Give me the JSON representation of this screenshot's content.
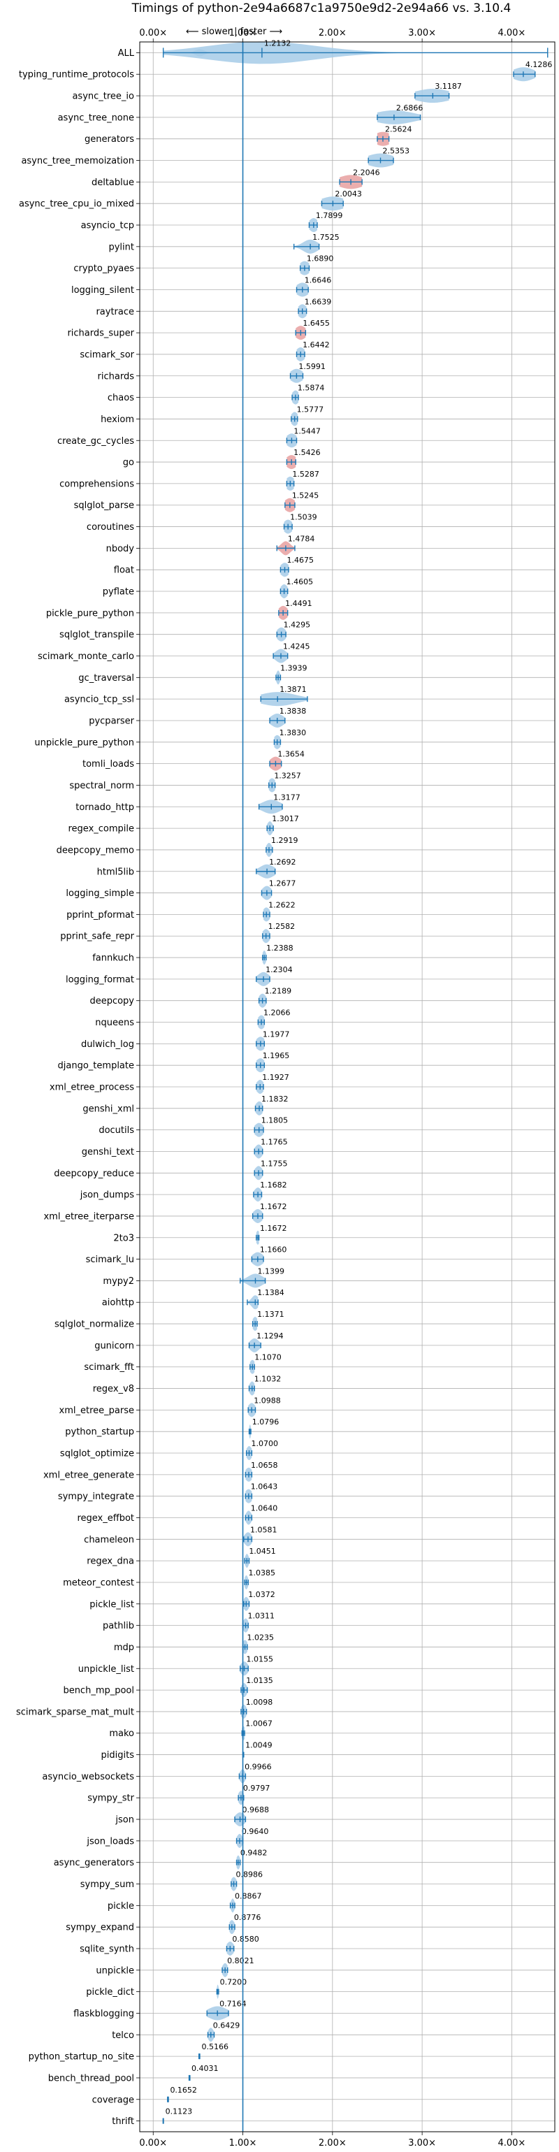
{
  "chart_data": {
    "type": "violin",
    "title": "Timings of python-2e94a6687c1a9750e9d2-2e94a66 vs. 3.10.4",
    "direction_label": "⟵ slower | faster ⟶",
    "x_ticks": [
      "0.00×",
      "1.00×",
      "2.00×",
      "3.00×",
      "4.00×"
    ],
    "x_tick_values": [
      0,
      1,
      2,
      3,
      4
    ],
    "xlim": [
      -0.15,
      4.48
    ],
    "reference_line": 1.0,
    "grid": true,
    "colors": {
      "violin": "#a6cbe8",
      "line": "#1f77b4",
      "slower": "#e8a0a0",
      "spine": "#000000"
    },
    "benchmarks": [
      {
        "name": "ALL",
        "value": "1.2132",
        "center": 1.2132,
        "lo": 0.1123,
        "hi": 4.4,
        "sp": 0.6
      },
      {
        "name": "typing_runtime_protocols",
        "value": "4.1286",
        "center": 4.1286,
        "lo": 4.02,
        "hi": 4.26,
        "sp": 0.12
      },
      {
        "name": "async_tree_io",
        "value": "3.1187",
        "center": 3.1187,
        "lo": 2.92,
        "hi": 3.3,
        "sp": 0.2
      },
      {
        "name": "async_tree_none",
        "value": "2.6866",
        "center": 2.6866,
        "lo": 2.5,
        "hi": 2.98,
        "sp": 0.22
      },
      {
        "name": "generators",
        "value": "2.5624",
        "center": 2.5624,
        "lo": 2.5,
        "hi": 2.63,
        "sp": 0.1,
        "slower": true
      },
      {
        "name": "async_tree_memoization",
        "value": "2.5353",
        "center": 2.5353,
        "lo": 2.4,
        "hi": 2.68,
        "sp": 0.15
      },
      {
        "name": "deltablue",
        "value": "2.2046",
        "center": 2.2046,
        "lo": 2.08,
        "hi": 2.33,
        "sp": 0.14,
        "slower": true
      },
      {
        "name": "async_tree_cpu_io_mixed",
        "value": "2.0043",
        "center": 2.0043,
        "lo": 1.88,
        "hi": 2.12,
        "sp": 0.14
      },
      {
        "name": "asyncio_tcp",
        "value": "1.7899",
        "center": 1.7899,
        "lo": 1.74,
        "hi": 1.83,
        "sp": 0.05
      },
      {
        "name": "pylint",
        "value": "1.7525",
        "center": 1.7525,
        "lo": 1.57,
        "hi": 1.85,
        "sp": 0.08
      },
      {
        "name": "crypto_pyaes",
        "value": "1.6890",
        "center": 1.689,
        "lo": 1.64,
        "hi": 1.74,
        "sp": 0.06
      },
      {
        "name": "logging_silent",
        "value": "1.6646",
        "center": 1.6646,
        "lo": 1.6,
        "hi": 1.73,
        "sp": 0.07
      },
      {
        "name": "raytrace",
        "value": "1.6639",
        "center": 1.6639,
        "lo": 1.62,
        "hi": 1.71,
        "sp": 0.05
      },
      {
        "name": "richards_super",
        "value": "1.6455",
        "center": 1.6455,
        "lo": 1.59,
        "hi": 1.7,
        "sp": 0.06,
        "slower": true
      },
      {
        "name": "scimark_sor",
        "value": "1.6442",
        "center": 1.6442,
        "lo": 1.6,
        "hi": 1.69,
        "sp": 0.05
      },
      {
        "name": "richards",
        "value": "1.5991",
        "center": 1.5991,
        "lo": 1.53,
        "hi": 1.67,
        "sp": 0.07
      },
      {
        "name": "chaos",
        "value": "1.5874",
        "center": 1.5874,
        "lo": 1.55,
        "hi": 1.62,
        "sp": 0.04
      },
      {
        "name": "hexiom",
        "value": "1.5777",
        "center": 1.5777,
        "lo": 1.54,
        "hi": 1.61,
        "sp": 0.04
      },
      {
        "name": "create_gc_cycles",
        "value": "1.5447",
        "center": 1.5447,
        "lo": 1.49,
        "hi": 1.6,
        "sp": 0.06
      },
      {
        "name": "go",
        "value": "1.5426",
        "center": 1.5426,
        "lo": 1.49,
        "hi": 1.59,
        "sp": 0.06,
        "slower": true
      },
      {
        "name": "comprehensions",
        "value": "1.5287",
        "center": 1.5287,
        "lo": 1.49,
        "hi": 1.57,
        "sp": 0.05
      },
      {
        "name": "sqlglot_parse",
        "value": "1.5245",
        "center": 1.5245,
        "lo": 1.47,
        "hi": 1.58,
        "sp": 0.06,
        "slower": true
      },
      {
        "name": "coroutines",
        "value": "1.5039",
        "center": 1.5039,
        "lo": 1.46,
        "hi": 1.55,
        "sp": 0.05
      },
      {
        "name": "nbody",
        "value": "1.4784",
        "center": 1.4784,
        "lo": 1.38,
        "hi": 1.58,
        "sp": 0.05,
        "slower": true
      },
      {
        "name": "float",
        "value": "1.4675",
        "center": 1.4675,
        "lo": 1.42,
        "hi": 1.51,
        "sp": 0.05
      },
      {
        "name": "pyflate",
        "value": "1.4605",
        "center": 1.4605,
        "lo": 1.42,
        "hi": 1.5,
        "sp": 0.04
      },
      {
        "name": "pickle_pure_python",
        "value": "1.4491",
        "center": 1.4491,
        "lo": 1.4,
        "hi": 1.5,
        "sp": 0.05,
        "slower": true
      },
      {
        "name": "sqlglot_transpile",
        "value": "1.4295",
        "center": 1.4295,
        "lo": 1.38,
        "hi": 1.48,
        "sp": 0.05
      },
      {
        "name": "scimark_monte_carlo",
        "value": "1.4245",
        "center": 1.4245,
        "lo": 1.34,
        "hi": 1.5,
        "sp": 0.06
      },
      {
        "name": "gc_traversal",
        "value": "1.3939",
        "center": 1.3939,
        "lo": 1.37,
        "hi": 1.42,
        "sp": 0.02
      },
      {
        "name": "asyncio_tcp_ssl",
        "value": "1.3871",
        "center": 1.3871,
        "lo": 1.2,
        "hi": 1.72,
        "sp": 0.2
      },
      {
        "name": "pycparser",
        "value": "1.3838",
        "center": 1.3838,
        "lo": 1.3,
        "hi": 1.47,
        "sp": 0.07
      },
      {
        "name": "unpickle_pure_python",
        "value": "1.3830",
        "center": 1.383,
        "lo": 1.35,
        "hi": 1.42,
        "sp": 0.04
      },
      {
        "name": "tomli_loads",
        "value": "1.3654",
        "center": 1.3654,
        "lo": 1.3,
        "hi": 1.43,
        "sp": 0.06,
        "slower": true
      },
      {
        "name": "spectral_norm",
        "value": "1.3257",
        "center": 1.3257,
        "lo": 1.29,
        "hi": 1.36,
        "sp": 0.04
      },
      {
        "name": "tornado_http",
        "value": "1.3177",
        "center": 1.3177,
        "lo": 1.18,
        "hi": 1.44,
        "sp": 0.1
      },
      {
        "name": "regex_compile",
        "value": "1.3017",
        "center": 1.3017,
        "lo": 1.27,
        "hi": 1.34,
        "sp": 0.03
      },
      {
        "name": "deepcopy_memo",
        "value": "1.2919",
        "center": 1.2919,
        "lo": 1.26,
        "hi": 1.33,
        "sp": 0.03
      },
      {
        "name": "html5lib",
        "value": "1.2692",
        "center": 1.2692,
        "lo": 1.15,
        "hi": 1.36,
        "sp": 0.08
      },
      {
        "name": "logging_simple",
        "value": "1.2677",
        "center": 1.2677,
        "lo": 1.21,
        "hi": 1.32,
        "sp": 0.05
      },
      {
        "name": "pprint_pformat",
        "value": "1.2622",
        "center": 1.2622,
        "lo": 1.23,
        "hi": 1.3,
        "sp": 0.04
      },
      {
        "name": "pprint_safe_repr",
        "value": "1.2582",
        "center": 1.2582,
        "lo": 1.22,
        "hi": 1.3,
        "sp": 0.04
      },
      {
        "name": "fannkuch",
        "value": "1.2388",
        "center": 1.2388,
        "lo": 1.22,
        "hi": 1.26,
        "sp": 0.02
      },
      {
        "name": "logging_format",
        "value": "1.2304",
        "center": 1.2304,
        "lo": 1.15,
        "hi": 1.3,
        "sp": 0.06
      },
      {
        "name": "deepcopy",
        "value": "1.2189",
        "center": 1.2189,
        "lo": 1.18,
        "hi": 1.26,
        "sp": 0.04
      },
      {
        "name": "nqueens",
        "value": "1.2066",
        "center": 1.2066,
        "lo": 1.17,
        "hi": 1.24,
        "sp": 0.04
      },
      {
        "name": "dulwich_log",
        "value": "1.1977",
        "center": 1.1977,
        "lo": 1.15,
        "hi": 1.24,
        "sp": 0.05
      },
      {
        "name": "django_template",
        "value": "1.1965",
        "center": 1.1965,
        "lo": 1.15,
        "hi": 1.24,
        "sp": 0.05
      },
      {
        "name": "xml_etree_process",
        "value": "1.1927",
        "center": 1.1927,
        "lo": 1.15,
        "hi": 1.23,
        "sp": 0.04
      },
      {
        "name": "genshi_xml",
        "value": "1.1832",
        "center": 1.1832,
        "lo": 1.14,
        "hi": 1.22,
        "sp": 0.04
      },
      {
        "name": "docutils",
        "value": "1.1805",
        "center": 1.1805,
        "lo": 1.13,
        "hi": 1.23,
        "sp": 0.05
      },
      {
        "name": "genshi_text",
        "value": "1.1765",
        "center": 1.1765,
        "lo": 1.13,
        "hi": 1.22,
        "sp": 0.04
      },
      {
        "name": "deepcopy_reduce",
        "value": "1.1755",
        "center": 1.1755,
        "lo": 1.13,
        "hi": 1.22,
        "sp": 0.04
      },
      {
        "name": "json_dumps",
        "value": "1.1682",
        "center": 1.1682,
        "lo": 1.12,
        "hi": 1.21,
        "sp": 0.04
      },
      {
        "name": "xml_etree_iterparse",
        "value": "1.1672",
        "center": 1.1672,
        "lo": 1.11,
        "hi": 1.22,
        "sp": 0.05
      },
      {
        "name": "2to3",
        "value": "1.1672",
        "center": 1.1672,
        "lo": 1.15,
        "hi": 1.18,
        "sp": 0.02
      },
      {
        "name": "scimark_lu",
        "value": "1.1660",
        "center": 1.166,
        "lo": 1.1,
        "hi": 1.23,
        "sp": 0.06
      },
      {
        "name": "mypy2",
        "value": "1.1399",
        "center": 1.1399,
        "lo": 0.97,
        "hi": 1.25,
        "sp": 0.08
      },
      {
        "name": "aiohttp",
        "value": "1.1384",
        "center": 1.1384,
        "lo": 1.05,
        "hi": 1.17,
        "sp": 0.04
      },
      {
        "name": "sqlglot_normalize",
        "value": "1.1371",
        "center": 1.1371,
        "lo": 1.11,
        "hi": 1.16,
        "sp": 0.03
      },
      {
        "name": "gunicorn",
        "value": "1.1294",
        "center": 1.1294,
        "lo": 1.07,
        "hi": 1.2,
        "sp": 0.05
      },
      {
        "name": "scimark_fft",
        "value": "1.1070",
        "center": 1.107,
        "lo": 1.08,
        "hi": 1.13,
        "sp": 0.03
      },
      {
        "name": "regex_v8",
        "value": "1.1032",
        "center": 1.1032,
        "lo": 1.07,
        "hi": 1.13,
        "sp": 0.03
      },
      {
        "name": "xml_etree_parse",
        "value": "1.0988",
        "center": 1.0988,
        "lo": 1.06,
        "hi": 1.14,
        "sp": 0.04
      },
      {
        "name": "python_startup",
        "value": "1.0796",
        "center": 1.0796,
        "lo": 1.07,
        "hi": 1.09,
        "sp": 0.01
      },
      {
        "name": "sqlglot_optimize",
        "value": "1.0700",
        "center": 1.07,
        "lo": 1.04,
        "hi": 1.1,
        "sp": 0.03
      },
      {
        "name": "xml_etree_generate",
        "value": "1.0658",
        "center": 1.0658,
        "lo": 1.03,
        "hi": 1.1,
        "sp": 0.04
      },
      {
        "name": "sympy_integrate",
        "value": "1.0643",
        "center": 1.0643,
        "lo": 1.03,
        "hi": 1.1,
        "sp": 0.04
      },
      {
        "name": "regex_effbot",
        "value": "1.0640",
        "center": 1.064,
        "lo": 1.03,
        "hi": 1.1,
        "sp": 0.03
      },
      {
        "name": "chameleon",
        "value": "1.0581",
        "center": 1.0581,
        "lo": 1.01,
        "hi": 1.1,
        "sp": 0.04
      },
      {
        "name": "regex_dna",
        "value": "1.0451",
        "center": 1.0451,
        "lo": 1.02,
        "hi": 1.07,
        "sp": 0.02
      },
      {
        "name": "meteor_contest",
        "value": "1.0385",
        "center": 1.0385,
        "lo": 1.02,
        "hi": 1.06,
        "sp": 0.02
      },
      {
        "name": "pickle_list",
        "value": "1.0372",
        "center": 1.0372,
        "lo": 1.01,
        "hi": 1.07,
        "sp": 0.03
      },
      {
        "name": "pathlib",
        "value": "1.0311",
        "center": 1.0311,
        "lo": 1.0,
        "hi": 1.06,
        "sp": 0.03
      },
      {
        "name": "mdp",
        "value": "1.0235",
        "center": 1.0235,
        "lo": 1.0,
        "hi": 1.05,
        "sp": 0.03
      },
      {
        "name": "unpickle_list",
        "value": "1.0155",
        "center": 1.0155,
        "lo": 0.97,
        "hi": 1.06,
        "sp": 0.04
      },
      {
        "name": "bench_mp_pool",
        "value": "1.0135",
        "center": 1.0135,
        "lo": 0.98,
        "hi": 1.05,
        "sp": 0.03
      },
      {
        "name": "scimark_sparse_mat_mult",
        "value": "1.0098",
        "center": 1.0098,
        "lo": 0.98,
        "hi": 1.04,
        "sp": 0.03
      },
      {
        "name": "mako",
        "value": "1.0067",
        "center": 1.0067,
        "lo": 0.99,
        "hi": 1.02,
        "sp": 0.02
      },
      {
        "name": "pidigits",
        "value": "1.0049",
        "center": 1.0049,
        "lo": 1.0,
        "hi": 1.01,
        "sp": 0.01
      },
      {
        "name": "asyncio_websockets",
        "value": "0.9966",
        "center": 0.9966,
        "lo": 0.96,
        "hi": 1.03,
        "sp": 0.03
      },
      {
        "name": "sympy_str",
        "value": "0.9797",
        "center": 0.9797,
        "lo": 0.95,
        "hi": 1.01,
        "sp": 0.03
      },
      {
        "name": "json",
        "value": "0.9688",
        "center": 0.9688,
        "lo": 0.91,
        "hi": 1.03,
        "sp": 0.05
      },
      {
        "name": "json_loads",
        "value": "0.9640",
        "center": 0.964,
        "lo": 0.93,
        "hi": 1.0,
        "sp": 0.03
      },
      {
        "name": "async_generators",
        "value": "0.9482",
        "center": 0.9482,
        "lo": 0.93,
        "hi": 0.97,
        "sp": 0.02
      },
      {
        "name": "sympy_sum",
        "value": "0.8986",
        "center": 0.8986,
        "lo": 0.87,
        "hi": 0.93,
        "sp": 0.03
      },
      {
        "name": "pickle",
        "value": "0.8867",
        "center": 0.8867,
        "lo": 0.86,
        "hi": 0.91,
        "sp": 0.02
      },
      {
        "name": "sympy_expand",
        "value": "0.8776",
        "center": 0.8776,
        "lo": 0.85,
        "hi": 0.91,
        "sp": 0.03
      },
      {
        "name": "sqlite_synth",
        "value": "0.8580",
        "center": 0.858,
        "lo": 0.82,
        "hi": 0.9,
        "sp": 0.04
      },
      {
        "name": "unpickle",
        "value": "0.8021",
        "center": 0.8021,
        "lo": 0.77,
        "hi": 0.83,
        "sp": 0.03
      },
      {
        "name": "pickle_dict",
        "value": "0.7200",
        "center": 0.72,
        "lo": 0.71,
        "hi": 0.73,
        "sp": 0.01
      },
      {
        "name": "flaskblogging",
        "value": "0.7164",
        "center": 0.7164,
        "lo": 0.6,
        "hi": 0.84,
        "sp": 0.1
      },
      {
        "name": "telco",
        "value": "0.6429",
        "center": 0.6429,
        "lo": 0.61,
        "hi": 0.68,
        "sp": 0.03
      },
      {
        "name": "python_startup_no_site",
        "value": "0.5166",
        "center": 0.5166,
        "lo": 0.51,
        "hi": 0.52,
        "sp": 0.005
      },
      {
        "name": "bench_thread_pool",
        "value": "0.4031",
        "center": 0.4031,
        "lo": 0.4,
        "hi": 0.41,
        "sp": 0.005
      },
      {
        "name": "coverage",
        "value": "0.1652",
        "center": 0.1652,
        "lo": 0.16,
        "hi": 0.17,
        "sp": 0.005
      },
      {
        "name": "thrift",
        "value": "0.1123",
        "center": 0.1123,
        "lo": 0.11,
        "hi": 0.115,
        "sp": 0.005
      }
    ]
  }
}
